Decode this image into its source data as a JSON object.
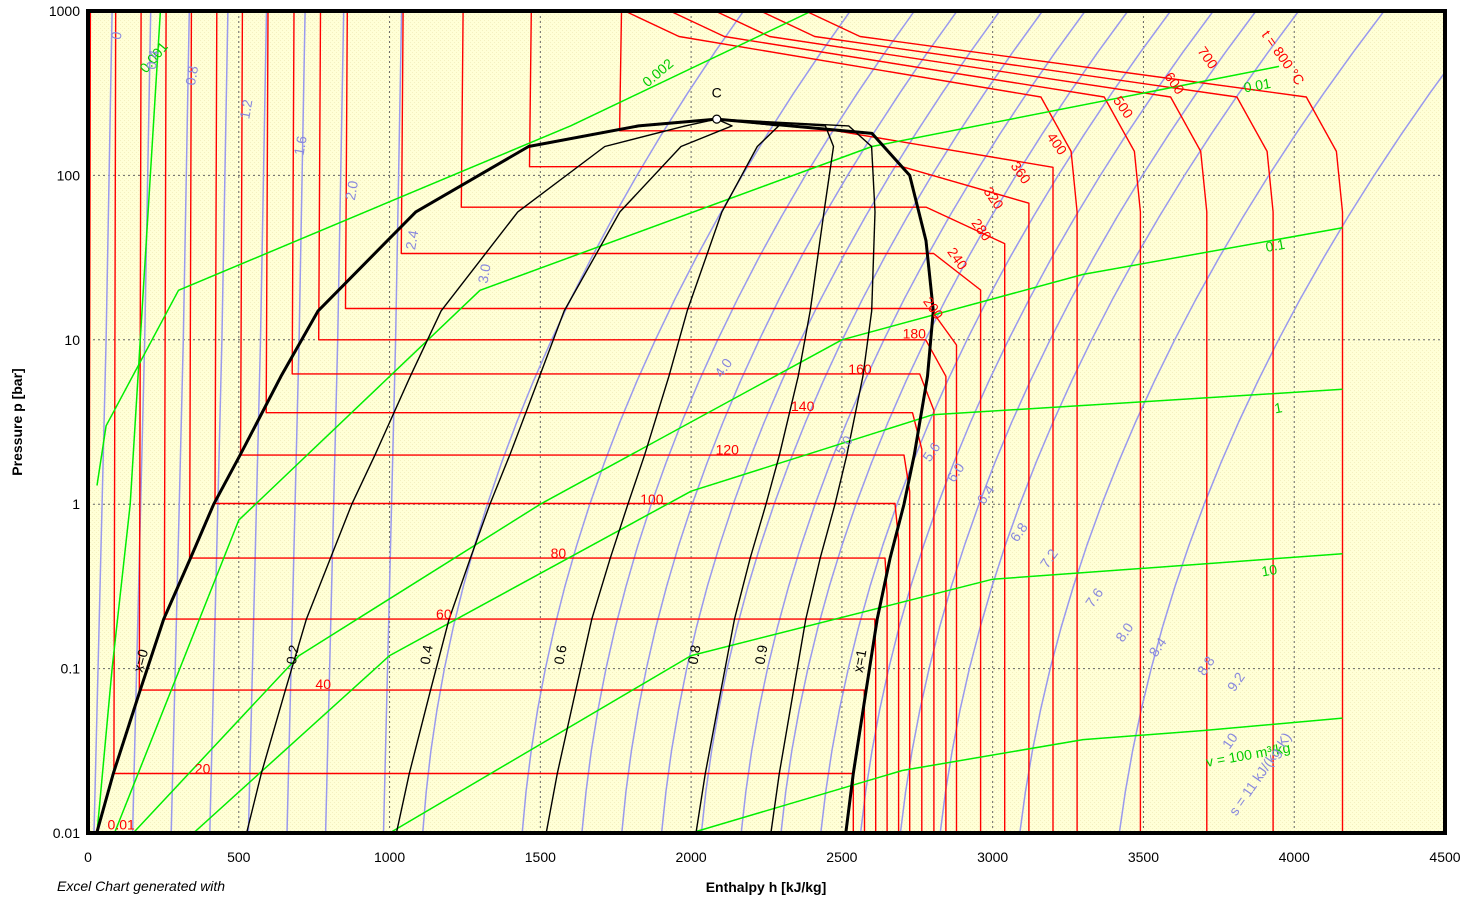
{
  "chart_data": {
    "type": "line",
    "x_axis": {
      "label": "Enthalpy h [kJ/kg]",
      "min": 0,
      "max": 4500,
      "ticks": [
        "0",
        "500",
        "1000",
        "1500",
        "2000",
        "2500",
        "3000",
        "3500",
        "4000",
        "4500"
      ]
    },
    "y_axis": {
      "label": "Pressure p [bar]",
      "scale": "log",
      "min": 0.01,
      "max": 1000,
      "ticks": [
        "0.01",
        "0.1",
        "1",
        "10",
        "100",
        "1000"
      ]
    },
    "grid": true,
    "footnote": "Excel Chart generated with",
    "critical_point": {
      "label": "C",
      "h": 2085,
      "p": 220
    },
    "saturation_dome": {
      "liquid_line": {
        "label": "x=0",
        "h": [
          29,
          84,
          172,
          251,
          340,
          417,
          505,
          640,
          763,
          1087,
          1461,
          1826,
          2085
        ],
        "p": [
          0.01,
          0.023,
          0.073,
          0.2,
          0.47,
          1.0,
          2.0,
          6.0,
          15,
          60,
          150,
          200,
          220
        ]
      },
      "vapor_line": {
        "label": "x=1",
        "h": [
          2513,
          2538,
          2580,
          2617,
          2660,
          2706,
          2740,
          2784,
          2803,
          2779,
          2725,
          2600,
          2085
        ],
        "p": [
          0.01,
          0.023,
          0.073,
          0.2,
          0.47,
          1.0,
          2.0,
          6.0,
          15,
          40,
          100,
          180,
          220
        ]
      }
    },
    "quality_lines": [
      {
        "label": "0.2",
        "h_at_0_01": 560
      },
      {
        "label": "0.4",
        "h_at_0_01": 1010
      },
      {
        "label": "0.6",
        "h_at_0_01": 1520
      },
      {
        "label": "0.8",
        "h_at_0_01": 2010
      },
      {
        "label": "0.9",
        "h_at_0_01": 2260
      }
    ],
    "isotherms": {
      "color": "#ff0000",
      "labels": [
        "0.01",
        "20",
        "40",
        "60",
        "80",
        "100",
        "120",
        "140",
        "160",
        "180",
        "200",
        "240",
        "280",
        "320",
        "360",
        "400",
        "500",
        "600",
        "700",
        "t = 800 °C"
      ],
      "values_c": [
        0.01,
        20,
        40,
        60,
        80,
        100,
        120,
        140,
        160,
        180,
        200,
        240,
        280,
        320,
        360,
        400,
        500,
        600,
        700,
        800
      ],
      "p_sat_bar": [
        0.0061,
        0.023,
        0.074,
        0.2,
        0.47,
        1.01,
        1.99,
        3.6,
        6.2,
        10.0,
        15.5,
        33.5,
        64.1,
        112.9,
        186.7
      ],
      "hf_kj_kg": [
        0,
        84,
        168,
        251,
        335,
        419,
        504,
        589,
        675,
        763,
        852,
        1037,
        1236,
        1462,
        1761
      ],
      "hg_kj_kg": [
        2501,
        2538,
        2574,
        2609,
        2643,
        2676,
        2706,
        2734,
        2758,
        2778,
        2793,
        2804,
        2780,
        2700,
        2481
      ],
      "h_superheat_kj_kg": [
        2500,
        2538,
        2575,
        2612,
        2650,
        2688,
        2725,
        2765,
        2805,
        2845,
        2880,
        2960,
        3040,
        3120,
        3200,
        3280,
        3490,
        3710,
        3930,
        4160
      ]
    },
    "isochores": {
      "color": "#00ee00",
      "labels": [
        "0.001",
        "0.002",
        "0.01",
        "0.1",
        "1",
        "10",
        "v = 100 m³/kg"
      ],
      "values_m3_kg": [
        0.001,
        0.002,
        0.01,
        0.1,
        1,
        10,
        100
      ]
    },
    "isentropes": {
      "color": "#9999ee",
      "labels": [
        "0",
        "0.4",
        "0.8",
        "1.2",
        "1.6",
        "2.0",
        "2.4",
        "3.0",
        "4.0",
        "5.0",
        "5.6",
        "6.0",
        "6.4",
        "6.8",
        "7.2",
        "7.6",
        "8.0",
        "8.4",
        "8.8",
        "9.2",
        "10",
        "s = 11 kJ/(kg·K)"
      ],
      "values_kj_kgk": [
        0,
        0.4,
        0.8,
        1.2,
        1.6,
        2.0,
        2.4,
        3.0,
        4.0,
        5.0,
        5.6,
        6.0,
        6.4,
        6.8,
        7.2,
        7.6,
        8.0,
        8.4,
        8.8,
        9.2,
        10,
        11
      ]
    }
  }
}
